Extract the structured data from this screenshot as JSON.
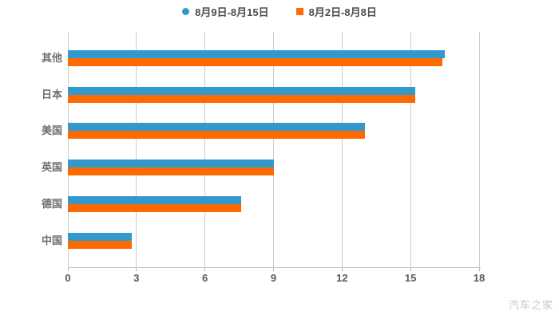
{
  "page": {
    "background": "#ffffff",
    "watermark": "汽车之家"
  },
  "chart_data": {
    "type": "bar",
    "orientation": "horizontal",
    "title": "",
    "xlabel": "",
    "ylabel": "",
    "categories": [
      "其他",
      "日本",
      "美国",
      "英国",
      "德国",
      "中国"
    ],
    "series": [
      {
        "name": "8月9日-8月15日",
        "color": "#3399cd",
        "marker": "circle",
        "values": [
          16.5,
          15.2,
          13.0,
          9.0,
          7.6,
          2.8
        ]
      },
      {
        "name": "8月2日-8月8日",
        "color": "#ff6a00",
        "marker": "square",
        "values": [
          16.4,
          15.2,
          13.0,
          9.0,
          7.6,
          2.8
        ]
      }
    ],
    "xlim": [
      0,
      18
    ],
    "x_ticks": [
      0,
      3,
      6,
      9,
      12,
      15,
      18
    ],
    "grid": "vertical",
    "legend_position": "top"
  }
}
